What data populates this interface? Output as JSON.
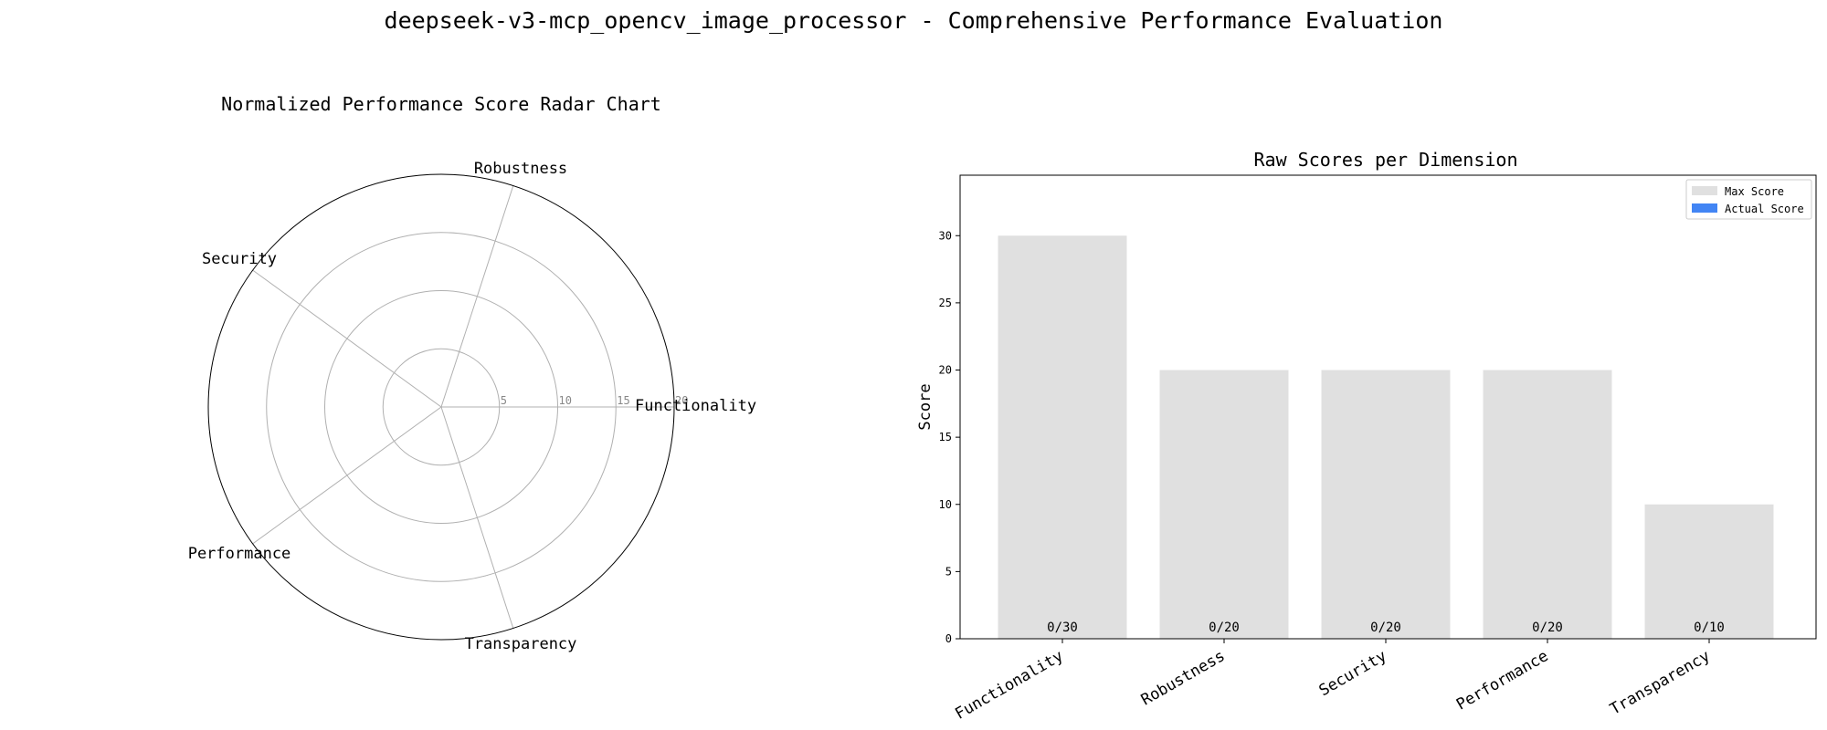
{
  "page": {
    "title": "deepseek-v3-mcp_opencv_image_processor - Comprehensive Performance Evaluation"
  },
  "colors": {
    "max_bar": "#e0e0e0",
    "actual_bar": "#4285f4",
    "grid": "#b0b0b0",
    "frame": "#000000"
  },
  "chart_data": [
    {
      "type": "radar",
      "title": "Normalized Performance Score Radar Chart",
      "axes": [
        "Functionality",
        "Robustness",
        "Security",
        "Performance",
        "Transparency"
      ],
      "rlim": [
        0,
        20
      ],
      "rticks": [
        "5",
        "10",
        "15",
        "20"
      ],
      "series": [
        {
          "values": [
            0,
            0,
            0,
            0,
            0
          ]
        }
      ],
      "grid": true
    },
    {
      "type": "bar",
      "title": "Raw Scores per Dimension",
      "ylabel": "Score",
      "xlabel": "",
      "categories": [
        "Functionality",
        "Robustness",
        "Security",
        "Performance",
        "Transparency"
      ],
      "series": [
        {
          "name": "Max Score",
          "values": [
            30,
            20,
            20,
            20,
            10
          ]
        },
        {
          "name": "Actual Score",
          "values": [
            0,
            0,
            0,
            0,
            0
          ]
        }
      ],
      "data_labels": [
        "0/30",
        "0/20",
        "0/20",
        "0/20",
        "0/10"
      ],
      "ylim": [
        0,
        34.5
      ],
      "yticks": [
        "0",
        "5",
        "10",
        "15",
        "20",
        "25",
        "30"
      ],
      "legend": "top-right",
      "grid": false
    }
  ]
}
